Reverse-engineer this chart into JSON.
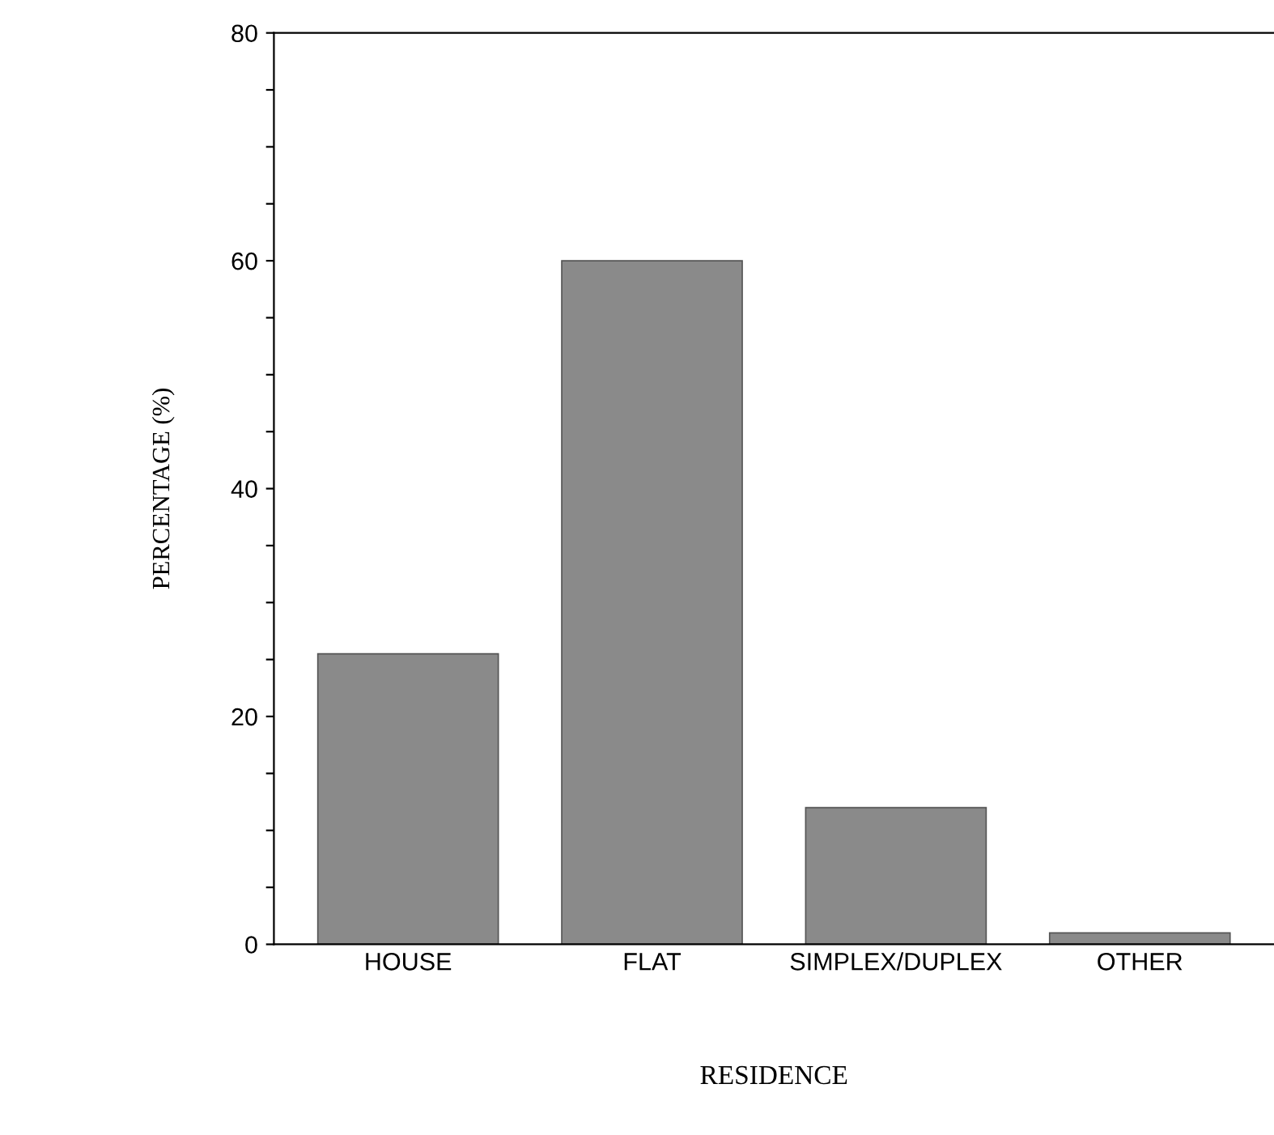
{
  "chart_data": {
    "type": "bar",
    "xlabel": "RESIDENCE",
    "ylabel": "PERCENTAGE (%)",
    "categories": [
      "HOUSE",
      "FLAT",
      "SIMPLEX/DUPLEX",
      "OTHER"
    ],
    "values": [
      25.5,
      60,
      12,
      1
    ],
    "color": "#8a8a8a",
    "ylim": [
      0,
      80
    ],
    "yticks": [
      0,
      {
        "value": 5,
        "label": null
      },
      {
        "value": 10,
        "label": null
      },
      {
        "value": 15,
        "label": null
      },
      20,
      {
        "value": 25,
        "label": null
      },
      {
        "value": 30,
        "label": null
      },
      {
        "value": 35,
        "label": null
      },
      40,
      {
        "value": 45,
        "label": null
      },
      {
        "value": 50,
        "label": null
      },
      {
        "value": 55,
        "label": null
      },
      60,
      {
        "value": 65,
        "label": null
      },
      {
        "value": 70,
        "label": null
      },
      {
        "value": 75,
        "label": null
      },
      80
    ],
    "grid": false,
    "legend": false
  }
}
